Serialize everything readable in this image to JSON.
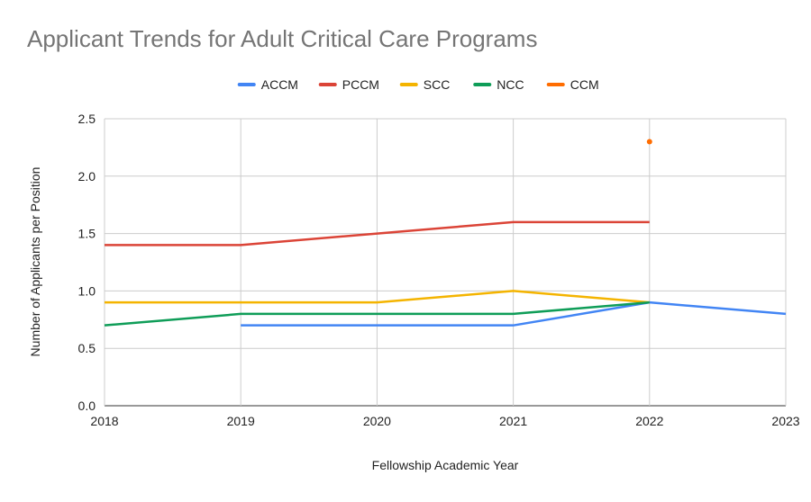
{
  "chart_data": {
    "type": "line",
    "title": "Applicant Trends for Adult Critical Care Programs",
    "xlabel": "Fellowship Academic Year",
    "ylabel": "Number of Applicants per Position",
    "x": [
      2018,
      2019,
      2020,
      2021,
      2022,
      2023
    ],
    "x_tick_labels": [
      "2018",
      "2019",
      "2020",
      "2021",
      "2022",
      "2023"
    ],
    "xlim": [
      2018,
      2023
    ],
    "ylim": [
      0,
      2.5
    ],
    "y_ticks": [
      0.0,
      0.5,
      1.0,
      1.5,
      2.0,
      2.5
    ],
    "y_tick_labels": [
      "0.0",
      "0.5",
      "1.0",
      "1.5",
      "2.0",
      "2.5"
    ],
    "grid": true,
    "legend_position": "top",
    "series": [
      {
        "name": "ACCM",
        "color": "#4285f4",
        "values": [
          null,
          0.7,
          0.7,
          0.7,
          0.9,
          0.8
        ]
      },
      {
        "name": "PCCM",
        "color": "#db4437",
        "values": [
          1.4,
          1.4,
          1.5,
          1.6,
          1.6,
          null
        ]
      },
      {
        "name": "SCC",
        "color": "#f4b400",
        "values": [
          0.9,
          0.9,
          0.9,
          1.0,
          0.9,
          null
        ]
      },
      {
        "name": "NCC",
        "color": "#0f9d58",
        "values": [
          0.7,
          0.8,
          0.8,
          0.8,
          0.9,
          null
        ]
      },
      {
        "name": "CCM",
        "color": "#ff6d01",
        "values": [
          null,
          null,
          null,
          null,
          2.3,
          null
        ]
      }
    ]
  }
}
